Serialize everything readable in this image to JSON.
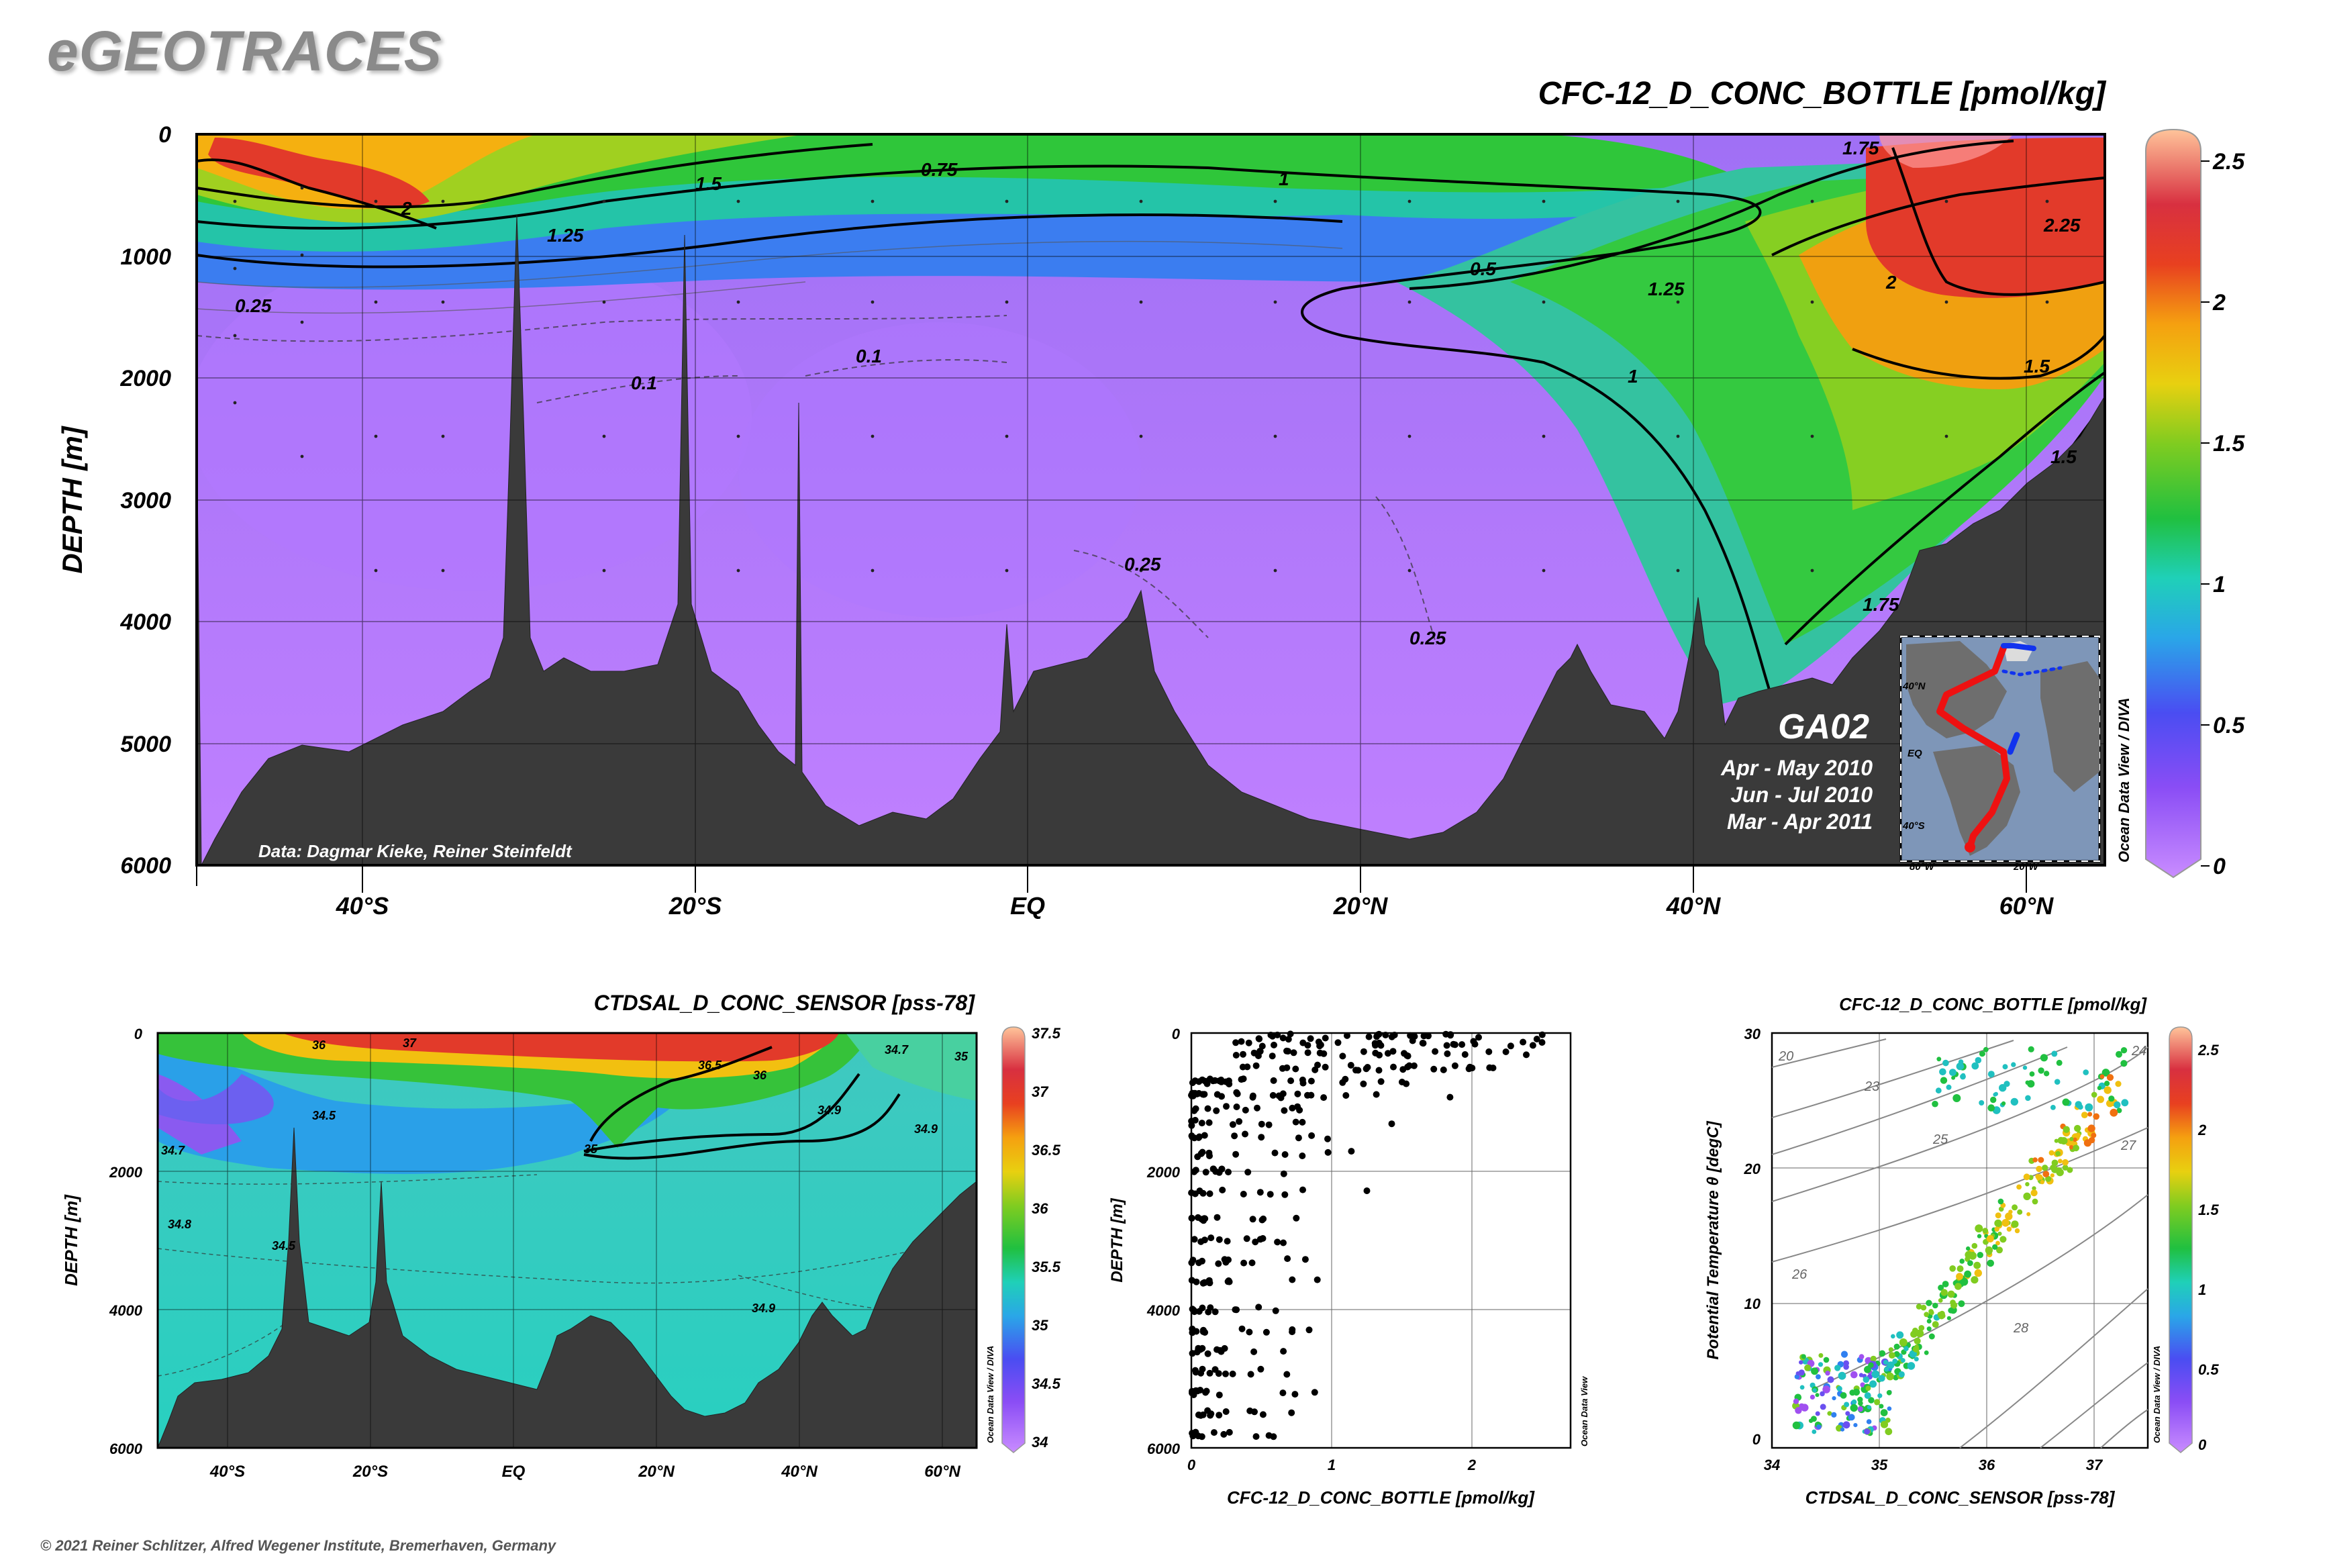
{
  "brand": "eGEOTRACES",
  "copyright": "© 2021 Reiner Schlitzer, Alfred Wegener Institute, Bremerhaven, Germany",
  "main_section": {
    "title": "CFC-12_D_CONC_BOTTLE [pmol/kg]",
    "ylabel": "DEPTH [m]",
    "y_ticks": [
      "0",
      "1000",
      "2000",
      "3000",
      "4000",
      "5000",
      "6000"
    ],
    "x_ticks": [
      "40°S",
      "20°S",
      "EQ",
      "20°N",
      "40°N",
      "60°N"
    ],
    "credit": "Data: Dagmar Kieke, Reiner Steinfeldt",
    "cruise": "GA02",
    "periods": [
      "Apr - May 2010",
      "Jun - Jul 2010",
      "Mar - Apr 2011"
    ],
    "software": "Ocean Data View / DIVA",
    "contour_labels": [
      "2",
      "1.5",
      "1.25",
      "0.75",
      "1",
      "0.5",
      "0.25",
      "0.1",
      "0.1",
      "0.25",
      "0.25",
      "1.25",
      "1",
      "1.5",
      "2",
      "2.25",
      "1.75",
      "1.75",
      "1.5"
    ],
    "inset_lat_labels": [
      "40°N",
      "EQ",
      "40°S"
    ],
    "inset_lon_labels": [
      "80°W",
      "20°W"
    ]
  },
  "colorbar_main": {
    "ticks": [
      "2.5",
      "2",
      "1.5",
      "1",
      "0.5",
      "0"
    ]
  },
  "salinity_section": {
    "title": "CTDSAL_D_CONC_SENSOR [pss-78]",
    "ylabel": "DEPTH [m]",
    "y_ticks": [
      "0",
      "2000",
      "4000",
      "6000"
    ],
    "x_ticks": [
      "40°S",
      "20°S",
      "EQ",
      "20°N",
      "40°N",
      "60°N"
    ],
    "software": "Ocean Data View / DIVA",
    "contour_labels": [
      "36",
      "37",
      "36.5",
      "36",
      "34.5",
      "34.7",
      "35",
      "34.9",
      "34.8",
      "34.5",
      "34.9",
      "34.9",
      "35",
      "34.7"
    ],
    "colorbar_ticks": [
      "37.5",
      "37",
      "36.5",
      "36",
      "35.5",
      "35",
      "34.5",
      "34"
    ]
  },
  "scatter_profile": {
    "xlabel": "CFC-12_D_CONC_BOTTLE [pmol/kg]",
    "ylabel": "DEPTH [m]",
    "x_ticks": [
      "0",
      "1",
      "2"
    ],
    "y_ticks": [
      "0",
      "2000",
      "4000",
      "6000"
    ],
    "software": "Ocean Data View"
  },
  "ts_plot": {
    "title": "CFC-12_D_CONC_BOTTLE [pmol/kg]",
    "xlabel": "CTDSAL_D_CONC_SENSOR [pss-78]",
    "ylabel": "Potential Temperature θ [degC]",
    "x_ticks": [
      "34",
      "35",
      "36",
      "37"
    ],
    "y_ticks": [
      "0",
      "10",
      "20",
      "30"
    ],
    "isopycnal_labels": [
      "20",
      "23",
      "24",
      "25",
      "26",
      "27",
      "28"
    ],
    "software": "Ocean Data View / DIVA",
    "colorbar_ticks": [
      "2.5",
      "2",
      "1.5",
      "1",
      "0.5",
      "0"
    ]
  },
  "chart_data": [
    {
      "type": "heatmap",
      "title": "CFC-12_D_CONC_BOTTLE [pmol/kg]",
      "ylabel": "DEPTH [m]",
      "xlim_lat": [
        -50,
        65
      ],
      "ylim": [
        6000,
        0
      ],
      "x_categories": [
        "40°S",
        "20°S",
        "EQ",
        "20°N",
        "40°N",
        "60°N"
      ],
      "colorbar_range": [
        0,
        2.6
      ],
      "contour_levels": [
        0.1,
        0.25,
        0.5,
        0.75,
        1,
        1.25,
        1.5,
        1.75,
        2,
        2.25,
        2.5
      ],
      "grid": true
    },
    {
      "type": "heatmap",
      "title": "CTDSAL_D_CONC_SENSOR [pss-78]",
      "ylabel": "DEPTH [m]",
      "ylim": [
        6000,
        0
      ],
      "colorbar_range": [
        34,
        37.5
      ],
      "contour_levels": [
        34.5,
        34.7,
        34.8,
        34.9,
        35,
        36,
        36.5,
        37
      ],
      "grid": true
    },
    {
      "type": "scatter",
      "xlabel": "CFC-12_D_CONC_BOTTLE [pmol/kg]",
      "ylabel": "DEPTH [m]",
      "xlim": [
        0,
        2.7
      ],
      "ylim": [
        6000,
        0
      ],
      "grid": true
    },
    {
      "type": "scatter",
      "title": "CFC-12_D_CONC_BOTTLE [pmol/kg]",
      "xlabel": "CTDSAL_D_CONC_SENSOR [pss-78]",
      "ylabel": "Potential Temperature θ [degC]",
      "xlim": [
        34,
        37.5
      ],
      "ylim": [
        -1,
        30
      ],
      "grid": true
    }
  ]
}
